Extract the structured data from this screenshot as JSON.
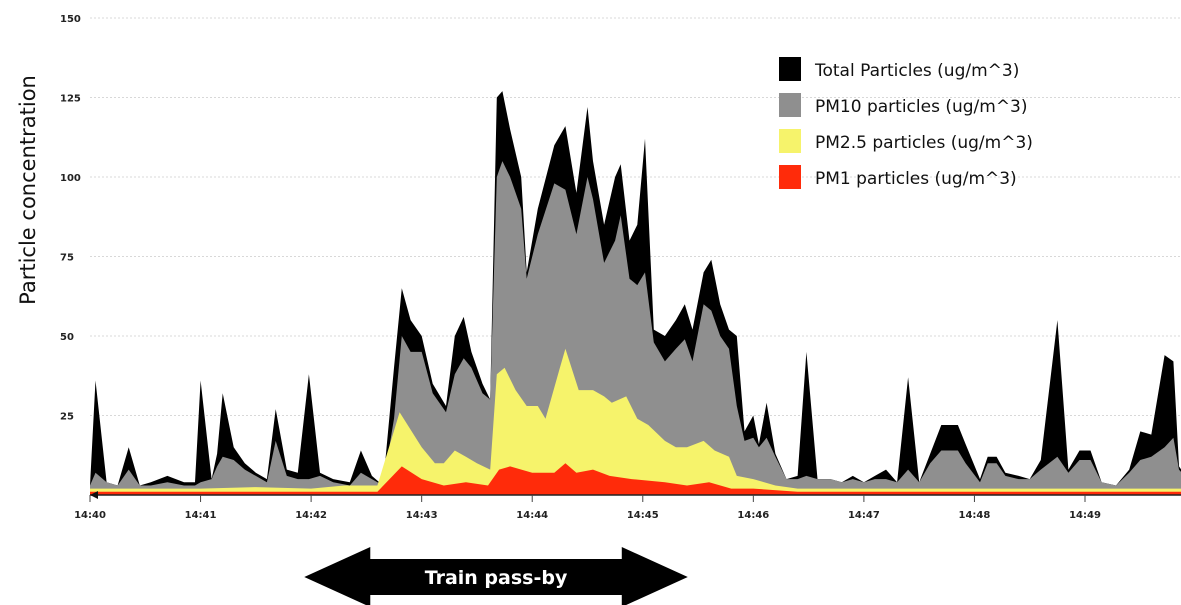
{
  "chart_data": {
    "type": "area",
    "title": "",
    "xlabel": "",
    "ylabel": "Particle concentration",
    "ylim": [
      0,
      150
    ],
    "y_ticks": [
      "25",
      "50",
      "75",
      "100",
      "125",
      "150"
    ],
    "x_ticks": [
      "14:40",
      "14:41",
      "14:42",
      "14:43",
      "14:44",
      "14:45",
      "14:46",
      "14:47",
      "14:48",
      "14:49"
    ],
    "xlim": [
      0,
      10
    ],
    "grid": true,
    "stacked": false,
    "legend_position": "top-right",
    "series": [
      {
        "name": "Total Particles (ug/m^3)",
        "color": "#000000",
        "points": [
          [
            0,
            3
          ],
          [
            0.05,
            36
          ],
          [
            0.15,
            4
          ],
          [
            0.25,
            3
          ],
          [
            0.35,
            15
          ],
          [
            0.45,
            3
          ],
          [
            0.55,
            4
          ],
          [
            0.7,
            6
          ],
          [
            0.85,
            4
          ],
          [
            0.95,
            4
          ],
          [
            1.0,
            36
          ],
          [
            1.1,
            5
          ],
          [
            1.15,
            13
          ],
          [
            1.2,
            32
          ],
          [
            1.3,
            15
          ],
          [
            1.4,
            10
          ],
          [
            1.5,
            7
          ],
          [
            1.6,
            5
          ],
          [
            1.68,
            27
          ],
          [
            1.78,
            8
          ],
          [
            1.88,
            7
          ],
          [
            1.98,
            38
          ],
          [
            2.08,
            7
          ],
          [
            2.2,
            5
          ],
          [
            2.35,
            4
          ],
          [
            2.45,
            14
          ],
          [
            2.55,
            6
          ],
          [
            2.65,
            3
          ],
          [
            2.75,
            40
          ],
          [
            2.82,
            65
          ],
          [
            2.9,
            55
          ],
          [
            3.0,
            50
          ],
          [
            3.1,
            35
          ],
          [
            3.22,
            28
          ],
          [
            3.3,
            50
          ],
          [
            3.38,
            56
          ],
          [
            3.45,
            45
          ],
          [
            3.55,
            35
          ],
          [
            3.62,
            30
          ],
          [
            3.68,
            125
          ],
          [
            3.73,
            127
          ],
          [
            3.8,
            115
          ],
          [
            3.9,
            100
          ],
          [
            3.95,
            70
          ],
          [
            4.05,
            90
          ],
          [
            4.2,
            110
          ],
          [
            4.3,
            116
          ],
          [
            4.4,
            95
          ],
          [
            4.5,
            122
          ],
          [
            4.55,
            105
          ],
          [
            4.65,
            85
          ],
          [
            4.75,
            100
          ],
          [
            4.8,
            104
          ],
          [
            4.88,
            80
          ],
          [
            4.95,
            85
          ],
          [
            5.02,
            112
          ],
          [
            5.1,
            52
          ],
          [
            5.2,
            50
          ],
          [
            5.3,
            55
          ],
          [
            5.38,
            60
          ],
          [
            5.45,
            52
          ],
          [
            5.55,
            70
          ],
          [
            5.62,
            74
          ],
          [
            5.7,
            60
          ],
          [
            5.78,
            52
          ],
          [
            5.85,
            50
          ],
          [
            5.92,
            20
          ],
          [
            6.0,
            25
          ],
          [
            6.05,
            16
          ],
          [
            6.12,
            29
          ],
          [
            6.2,
            13
          ],
          [
            6.3,
            5
          ],
          [
            6.4,
            6
          ],
          [
            6.48,
            45
          ],
          [
            6.58,
            5
          ],
          [
            6.7,
            5
          ],
          [
            6.8,
            4
          ],
          [
            6.9,
            6
          ],
          [
            7.0,
            4
          ],
          [
            7.1,
            6
          ],
          [
            7.2,
            8
          ],
          [
            7.3,
            4
          ],
          [
            7.4,
            37
          ],
          [
            7.5,
            4
          ],
          [
            7.6,
            13
          ],
          [
            7.7,
            22
          ],
          [
            7.85,
            22
          ],
          [
            7.92,
            16
          ],
          [
            8.05,
            5
          ],
          [
            8.12,
            12
          ],
          [
            8.2,
            12
          ],
          [
            8.28,
            7
          ],
          [
            8.4,
            6
          ],
          [
            8.5,
            5
          ],
          [
            8.6,
            11
          ],
          [
            8.75,
            55
          ],
          [
            8.85,
            8
          ],
          [
            8.95,
            14
          ],
          [
            9.05,
            14
          ],
          [
            9.15,
            4
          ],
          [
            9.28,
            3
          ],
          [
            9.4,
            8
          ],
          [
            9.5,
            20
          ],
          [
            9.6,
            19
          ],
          [
            9.72,
            44
          ],
          [
            9.8,
            42
          ],
          [
            9.85,
            9
          ],
          [
            9.95,
            4
          ],
          [
            10.0,
            3
          ]
        ]
      },
      {
        "name": "PM10 particles (ug/m^3)",
        "color": "#8f8f8f",
        "points": [
          [
            0,
            3
          ],
          [
            0.05,
            7
          ],
          [
            0.15,
            4
          ],
          [
            0.25,
            3
          ],
          [
            0.35,
            8
          ],
          [
            0.45,
            3
          ],
          [
            0.55,
            3
          ],
          [
            0.7,
            4
          ],
          [
            0.85,
            3
          ],
          [
            0.95,
            3
          ],
          [
            1.0,
            4
          ],
          [
            1.1,
            5
          ],
          [
            1.15,
            9
          ],
          [
            1.2,
            12
          ],
          [
            1.3,
            11
          ],
          [
            1.4,
            8
          ],
          [
            1.5,
            6
          ],
          [
            1.6,
            4
          ],
          [
            1.68,
            17
          ],
          [
            1.78,
            6
          ],
          [
            1.88,
            5
          ],
          [
            1.98,
            5
          ],
          [
            2.08,
            6
          ],
          [
            2.2,
            4
          ],
          [
            2.35,
            3
          ],
          [
            2.45,
            7
          ],
          [
            2.55,
            5
          ],
          [
            2.65,
            3
          ],
          [
            2.75,
            24
          ],
          [
            2.82,
            50
          ],
          [
            2.9,
            45
          ],
          [
            3.0,
            45
          ],
          [
            3.1,
            32
          ],
          [
            3.22,
            26
          ],
          [
            3.3,
            38
          ],
          [
            3.38,
            43
          ],
          [
            3.45,
            40
          ],
          [
            3.55,
            32
          ],
          [
            3.62,
            30
          ],
          [
            3.68,
            100
          ],
          [
            3.73,
            105
          ],
          [
            3.8,
            100
          ],
          [
            3.9,
            90
          ],
          [
            3.95,
            68
          ],
          [
            4.05,
            82
          ],
          [
            4.2,
            98
          ],
          [
            4.3,
            96
          ],
          [
            4.4,
            82
          ],
          [
            4.5,
            100
          ],
          [
            4.55,
            93
          ],
          [
            4.65,
            73
          ],
          [
            4.75,
            80
          ],
          [
            4.8,
            88
          ],
          [
            4.88,
            68
          ],
          [
            4.95,
            66
          ],
          [
            5.02,
            70
          ],
          [
            5.1,
            48
          ],
          [
            5.2,
            42
          ],
          [
            5.3,
            46
          ],
          [
            5.38,
            49
          ],
          [
            5.45,
            42
          ],
          [
            5.55,
            60
          ],
          [
            5.62,
            58
          ],
          [
            5.7,
            50
          ],
          [
            5.78,
            46
          ],
          [
            5.85,
            28
          ],
          [
            5.92,
            17
          ],
          [
            6.0,
            18
          ],
          [
            6.05,
            15
          ],
          [
            6.12,
            18
          ],
          [
            6.2,
            12
          ],
          [
            6.3,
            5
          ],
          [
            6.4,
            5
          ],
          [
            6.48,
            6
          ],
          [
            6.58,
            5
          ],
          [
            6.7,
            5
          ],
          [
            6.8,
            4
          ],
          [
            6.9,
            5
          ],
          [
            7.0,
            4
          ],
          [
            7.1,
            5
          ],
          [
            7.2,
            5
          ],
          [
            7.3,
            4
          ],
          [
            7.4,
            8
          ],
          [
            7.5,
            4
          ],
          [
            7.6,
            10
          ],
          [
            7.7,
            14
          ],
          [
            7.85,
            14
          ],
          [
            7.92,
            10
          ],
          [
            8.05,
            4
          ],
          [
            8.12,
            10
          ],
          [
            8.2,
            10
          ],
          [
            8.28,
            6
          ],
          [
            8.4,
            5
          ],
          [
            8.5,
            5
          ],
          [
            8.6,
            8
          ],
          [
            8.75,
            12
          ],
          [
            8.85,
            7
          ],
          [
            8.95,
            11
          ],
          [
            9.05,
            11
          ],
          [
            9.15,
            4
          ],
          [
            9.28,
            3
          ],
          [
            9.4,
            7
          ],
          [
            9.5,
            11
          ],
          [
            9.6,
            12
          ],
          [
            9.72,
            15
          ],
          [
            9.8,
            18
          ],
          [
            9.85,
            8
          ],
          [
            9.95,
            4
          ],
          [
            10.0,
            3
          ]
        ]
      },
      {
        "name": "PM2.5 particles (ug/m^3)",
        "color": "#f6f36b",
        "points": [
          [
            0,
            2
          ],
          [
            0.5,
            2
          ],
          [
            1.0,
            2
          ],
          [
            1.5,
            2.5
          ],
          [
            2.0,
            2
          ],
          [
            2.3,
            3
          ],
          [
            2.6,
            3
          ],
          [
            2.8,
            26
          ],
          [
            3.0,
            15
          ],
          [
            3.12,
            10
          ],
          [
            3.2,
            10
          ],
          [
            3.3,
            14
          ],
          [
            3.4,
            12
          ],
          [
            3.5,
            10
          ],
          [
            3.62,
            8
          ],
          [
            3.68,
            38
          ],
          [
            3.75,
            40
          ],
          [
            3.85,
            33
          ],
          [
            3.95,
            28
          ],
          [
            4.05,
            28
          ],
          [
            4.12,
            24
          ],
          [
            4.25,
            40
          ],
          [
            4.3,
            46
          ],
          [
            4.42,
            33
          ],
          [
            4.55,
            33
          ],
          [
            4.65,
            31
          ],
          [
            4.72,
            29
          ],
          [
            4.85,
            31
          ],
          [
            4.95,
            24
          ],
          [
            5.05,
            22
          ],
          [
            5.2,
            17
          ],
          [
            5.3,
            15
          ],
          [
            5.4,
            15
          ],
          [
            5.55,
            17
          ],
          [
            5.65,
            14
          ],
          [
            5.78,
            12
          ],
          [
            5.85,
            6
          ],
          [
            6.0,
            5
          ],
          [
            6.2,
            3
          ],
          [
            6.4,
            2
          ],
          [
            7.0,
            2
          ],
          [
            7.5,
            2
          ],
          [
            8.0,
            2
          ],
          [
            8.5,
            2
          ],
          [
            9.0,
            2
          ],
          [
            9.5,
            2
          ],
          [
            10.0,
            2
          ]
        ]
      },
      {
        "name": "PM1 particles (ug/m^3)",
        "color": "#ff2b0a",
        "points": [
          [
            0,
            1
          ],
          [
            1.0,
            1
          ],
          [
            2.0,
            1
          ],
          [
            2.6,
            1
          ],
          [
            2.82,
            9
          ],
          [
            3.0,
            5
          ],
          [
            3.2,
            3
          ],
          [
            3.4,
            4
          ],
          [
            3.6,
            3
          ],
          [
            3.7,
            8
          ],
          [
            3.8,
            9
          ],
          [
            4.0,
            7
          ],
          [
            4.2,
            7
          ],
          [
            4.3,
            10
          ],
          [
            4.4,
            7
          ],
          [
            4.55,
            8
          ],
          [
            4.7,
            6
          ],
          [
            4.9,
            5
          ],
          [
            5.2,
            4
          ],
          [
            5.4,
            3
          ],
          [
            5.6,
            4
          ],
          [
            5.8,
            2
          ],
          [
            6.0,
            2
          ],
          [
            6.4,
            1
          ],
          [
            7.0,
            1
          ],
          [
            8.0,
            1
          ],
          [
            9.0,
            1
          ],
          [
            10.0,
            1
          ]
        ]
      }
    ],
    "annotation": {
      "label": "Train pass-by",
      "x_start": 2.3,
      "x_end": 5.0
    }
  }
}
